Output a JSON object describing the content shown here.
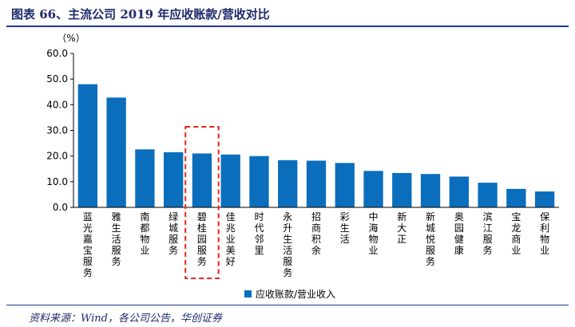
{
  "title": "图表 66、主流公司 2019 年应收账款/营收对比",
  "source": "资料来源：Wind，各公司公告，华创证券",
  "colors": {
    "bar": "#0a6ebd",
    "highlight_box": "#e8231b",
    "text": "#1d2a6b",
    "axis": "#000000"
  },
  "chart_data": {
    "type": "bar",
    "unit_label": "（%）",
    "categories": [
      "蓝光嘉宝服务",
      "雅生活服务",
      "南都物业",
      "绿城服务",
      "碧桂园服务",
      "佳兆业美好",
      "时代邻里",
      "永升生活服务",
      "招商积余",
      "彩生活",
      "中海物业",
      "新大正",
      "新城悦服务",
      "奥园健康",
      "滨江服务",
      "宝龙商业",
      "保利物业"
    ],
    "series": [
      {
        "name": "应收账款/营业收入",
        "values": [
          48.0,
          42.8,
          22.6,
          21.5,
          21.0,
          20.6,
          20.0,
          18.4,
          18.2,
          17.3,
          14.2,
          13.4,
          13.0,
          12.0,
          9.6,
          7.2,
          6.2
        ]
      }
    ],
    "ylim": [
      0,
      60
    ],
    "yticks": [
      "0.0",
      "10.0",
      "20.0",
      "30.0",
      "40.0",
      "50.0",
      "60.0"
    ],
    "highlight_category": "碧桂园服务",
    "grid": false,
    "legend_position": "bottom"
  }
}
